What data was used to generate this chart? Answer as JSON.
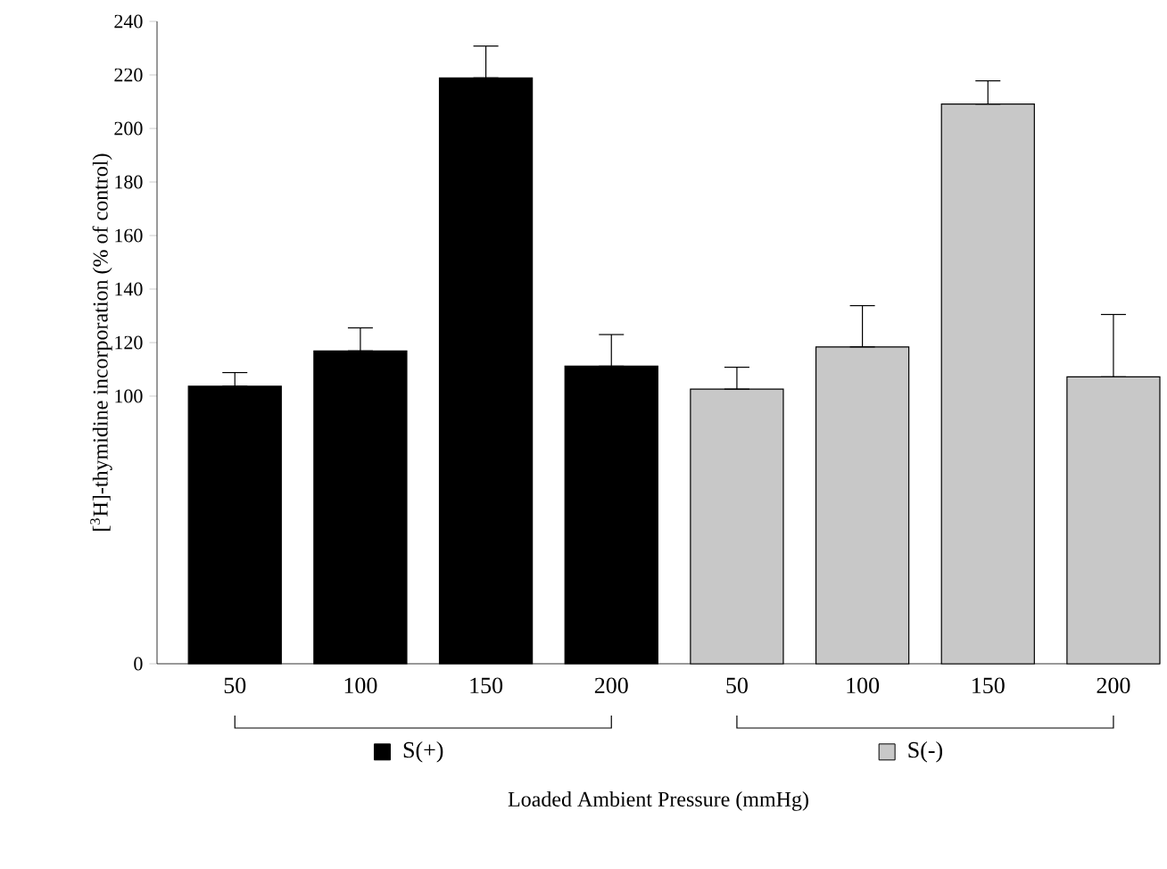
{
  "chart_data": {
    "type": "bar",
    "ylabel": "[$^{3}$H]-thymidine incorporation (% of control)",
    "xlabel": "Loaded Ambient Pressure (mmHg)",
    "categories": [
      "50",
      "100",
      "150",
      "200",
      "50",
      "100",
      "150",
      "200"
    ],
    "ylim": [
      0,
      240
    ],
    "yticks": [
      0,
      100,
      120,
      140,
      160,
      180,
      200,
      220,
      240
    ],
    "grid": false,
    "legend": "bottom",
    "series": [
      {
        "name": "S(+)",
        "color": "#000000",
        "values": [
          103.7,
          116.9,
          218.9,
          111.2,
          null,
          null,
          null,
          null
        ],
        "errors": [
          [
            103.7,
            108.8
          ],
          [
            116.9,
            125.5
          ],
          [
            218.9,
            230.8
          ],
          [
            111.2,
            123.0
          ],
          null,
          null,
          null,
          null
        ]
      },
      {
        "name": "S(-)",
        "color": "#c8c8c8",
        "values": [
          null,
          null,
          null,
          null,
          102.6,
          118.4,
          209.1,
          107.2
        ],
        "errors": [
          null,
          null,
          null,
          null,
          [
            102.6,
            110.8
          ],
          [
            118.4,
            133.8
          ],
          [
            209.1,
            217.8
          ],
          [
            107.2,
            130.5
          ]
        ]
      }
    ]
  }
}
